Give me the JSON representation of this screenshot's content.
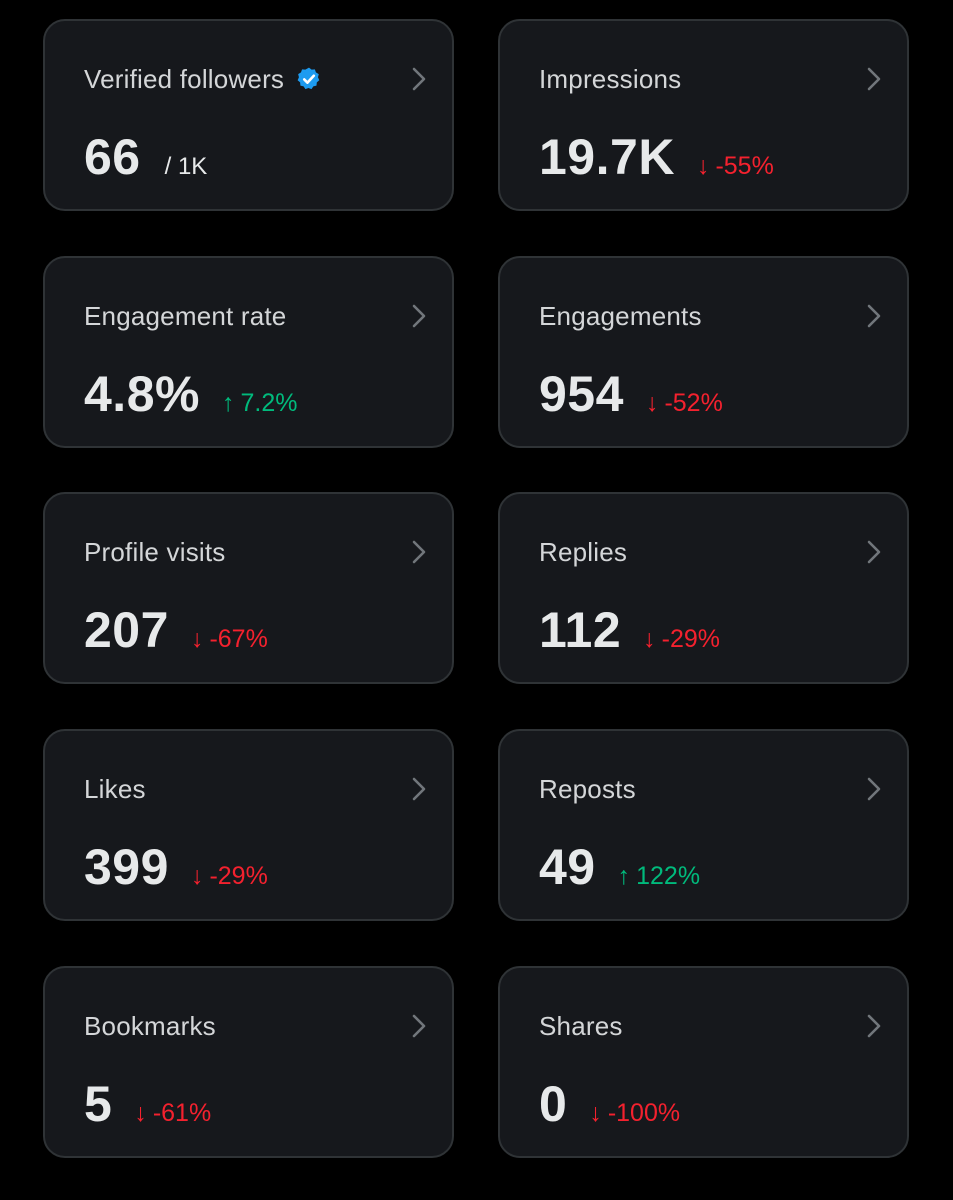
{
  "colors": {
    "background": "#000000",
    "card_background": "#16181c",
    "card_border": "#2f3336",
    "label": "#d4d6d8",
    "value": "#e7e9ea",
    "negative": "#f4212e",
    "positive": "#00ba7c",
    "verified_badge": "#1d9bf0",
    "chevron": "#71767b"
  },
  "cards": [
    {
      "label": "Verified followers",
      "value": "66",
      "suffix": "/ 1K",
      "badge": "verified-badge-icon"
    },
    {
      "label": "Impressions",
      "value": "19.7K",
      "arrow": "↓",
      "change": "-55%",
      "direction": "down"
    },
    {
      "label": "Engagement rate",
      "value": "4.8%",
      "arrow": "↑",
      "change": "7.2%",
      "direction": "up"
    },
    {
      "label": "Engagements",
      "value": "954",
      "arrow": "↓",
      "change": "-52%",
      "direction": "down"
    },
    {
      "label": "Profile visits",
      "value": "207",
      "arrow": "↓",
      "change": "-67%",
      "direction": "down"
    },
    {
      "label": "Replies",
      "value": "112",
      "arrow": "↓",
      "change": "-29%",
      "direction": "down"
    },
    {
      "label": "Likes",
      "value": "399",
      "arrow": "↓",
      "change": "-29%",
      "direction": "down"
    },
    {
      "label": "Reposts",
      "value": "49",
      "arrow": "↑",
      "change": "122%",
      "direction": "up"
    },
    {
      "label": "Bookmarks",
      "value": "5",
      "arrow": "↓",
      "change": "-61%",
      "direction": "down"
    },
    {
      "label": "Shares",
      "value": "0",
      "arrow": "↓",
      "change": "-100%",
      "direction": "down"
    }
  ]
}
